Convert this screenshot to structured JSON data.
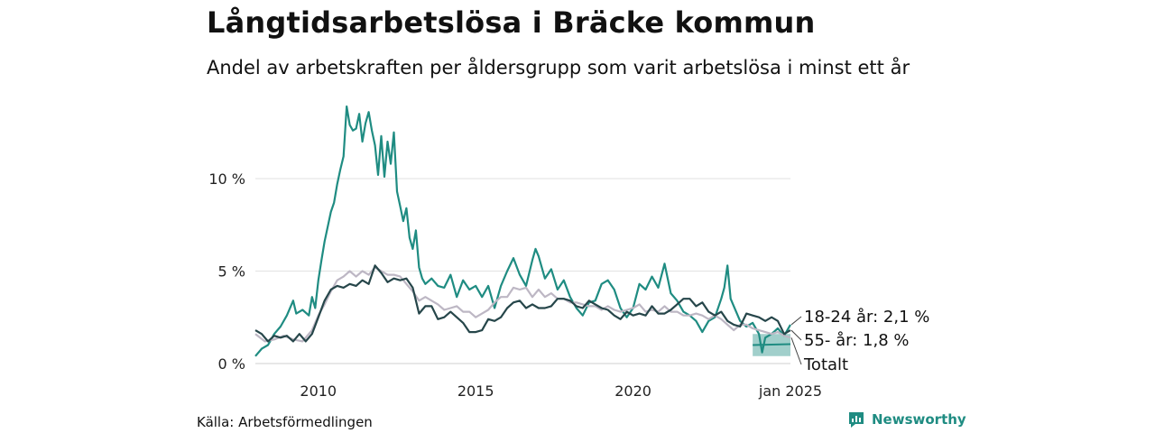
{
  "title": "Långtidsarbetslösa i Bräcke kommun",
  "subtitle": "Andel av arbetskraften per åldersgrupp som varit arbetslösa i minst ett år",
  "source": "Källa: Arbetsförmedlingen",
  "brand": {
    "name": "Newsworthy",
    "icon": "newsworthy-logo-icon",
    "color": "#1f8c82"
  },
  "chart_data": {
    "type": "line",
    "xlim": [
      2008.0,
      2025.0
    ],
    "ylim": [
      0,
      13.9
    ],
    "grid": true,
    "y_ticks": [
      {
        "value": 0,
        "label": "0 %"
      },
      {
        "value": 5,
        "label": "5 %"
      },
      {
        "value": 10,
        "label": "10 %"
      }
    ],
    "x_ticks": [
      {
        "value": 2010,
        "label": "2010"
      },
      {
        "value": 2015,
        "label": "2015"
      },
      {
        "value": 2020,
        "label": "2020"
      },
      {
        "value": 2025,
        "label": "jan 2025"
      }
    ],
    "end_labels": [
      "18-24 år: 2,1 %",
      "55- år: 1,8 %",
      "Totalt"
    ],
    "band": {
      "color": "#1f8c82",
      "x": [
        2023.8,
        2025.0
      ],
      "lower": [
        0.4,
        0.4
      ],
      "upper": [
        1.6,
        1.6
      ],
      "mid": [
        1.0,
        1.05
      ]
    },
    "series": [
      {
        "color": "#1f8c82",
        "label_ref": 0,
        "points": [
          [
            2008.0,
            0.4
          ],
          [
            2008.2,
            0.8
          ],
          [
            2008.4,
            1.0
          ],
          [
            2008.6,
            1.6
          ],
          [
            2008.8,
            2.0
          ],
          [
            2009.0,
            2.6
          ],
          [
            2009.2,
            3.4
          ],
          [
            2009.3,
            2.7
          ],
          [
            2009.5,
            2.9
          ],
          [
            2009.7,
            2.6
          ],
          [
            2009.8,
            3.6
          ],
          [
            2009.9,
            3.0
          ],
          [
            2010.0,
            4.5
          ],
          [
            2010.1,
            5.6
          ],
          [
            2010.2,
            6.6
          ],
          [
            2010.3,
            7.4
          ],
          [
            2010.4,
            8.2
          ],
          [
            2010.5,
            8.7
          ],
          [
            2010.6,
            9.7
          ],
          [
            2010.7,
            10.5
          ],
          [
            2010.8,
            11.2
          ],
          [
            2010.9,
            13.9
          ],
          [
            2011.0,
            12.9
          ],
          [
            2011.1,
            12.6
          ],
          [
            2011.2,
            12.7
          ],
          [
            2011.3,
            13.5
          ],
          [
            2011.4,
            12.0
          ],
          [
            2011.5,
            13.0
          ],
          [
            2011.6,
            13.6
          ],
          [
            2011.7,
            12.6
          ],
          [
            2011.8,
            11.8
          ],
          [
            2011.9,
            10.2
          ],
          [
            2012.0,
            12.3
          ],
          [
            2012.1,
            10.1
          ],
          [
            2012.2,
            12.0
          ],
          [
            2012.3,
            10.8
          ],
          [
            2012.4,
            12.5
          ],
          [
            2012.5,
            9.3
          ],
          [
            2012.6,
            8.5
          ],
          [
            2012.7,
            7.7
          ],
          [
            2012.8,
            8.4
          ],
          [
            2012.9,
            6.8
          ],
          [
            2013.0,
            6.2
          ],
          [
            2013.1,
            7.2
          ],
          [
            2013.2,
            5.2
          ],
          [
            2013.3,
            4.6
          ],
          [
            2013.4,
            4.3
          ],
          [
            2013.6,
            4.6
          ],
          [
            2013.8,
            4.2
          ],
          [
            2014.0,
            4.1
          ],
          [
            2014.2,
            4.8
          ],
          [
            2014.4,
            3.6
          ],
          [
            2014.6,
            4.5
          ],
          [
            2014.8,
            4.0
          ],
          [
            2015.0,
            4.2
          ],
          [
            2015.2,
            3.6
          ],
          [
            2015.4,
            4.2
          ],
          [
            2015.6,
            3.0
          ],
          [
            2015.8,
            4.2
          ],
          [
            2016.0,
            5.0
          ],
          [
            2016.2,
            5.7
          ],
          [
            2016.4,
            4.8
          ],
          [
            2016.6,
            4.2
          ],
          [
            2016.8,
            5.6
          ],
          [
            2016.9,
            6.2
          ],
          [
            2017.0,
            5.8
          ],
          [
            2017.2,
            4.6
          ],
          [
            2017.4,
            5.1
          ],
          [
            2017.6,
            4.0
          ],
          [
            2017.8,
            4.5
          ],
          [
            2018.0,
            3.6
          ],
          [
            2018.2,
            3.0
          ],
          [
            2018.4,
            2.6
          ],
          [
            2018.6,
            3.3
          ],
          [
            2018.8,
            3.4
          ],
          [
            2019.0,
            4.3
          ],
          [
            2019.2,
            4.5
          ],
          [
            2019.4,
            4.0
          ],
          [
            2019.6,
            3.0
          ],
          [
            2019.8,
            2.5
          ],
          [
            2020.0,
            3.0
          ],
          [
            2020.2,
            4.3
          ],
          [
            2020.4,
            4.0
          ],
          [
            2020.6,
            4.7
          ],
          [
            2020.8,
            4.1
          ],
          [
            2021.0,
            5.4
          ],
          [
            2021.2,
            3.8
          ],
          [
            2021.4,
            3.4
          ],
          [
            2021.6,
            2.8
          ],
          [
            2021.8,
            2.6
          ],
          [
            2022.0,
            2.3
          ],
          [
            2022.2,
            1.7
          ],
          [
            2022.4,
            2.3
          ],
          [
            2022.6,
            2.5
          ],
          [
            2022.8,
            3.5
          ],
          [
            2022.9,
            4.1
          ],
          [
            2023.0,
            5.3
          ],
          [
            2023.1,
            3.5
          ],
          [
            2023.2,
            3.1
          ],
          [
            2023.4,
            2.3
          ],
          [
            2023.6,
            2.0
          ],
          [
            2023.8,
            2.2
          ],
          [
            2024.0,
            1.6
          ],
          [
            2024.1,
            0.6
          ],
          [
            2024.2,
            1.4
          ],
          [
            2024.4,
            1.6
          ],
          [
            2024.6,
            1.9
          ],
          [
            2024.8,
            1.5
          ],
          [
            2025.0,
            2.1
          ]
        ]
      },
      {
        "color": "#bdb7c4",
        "label_ref": 2,
        "points": [
          [
            2008.0,
            1.6
          ],
          [
            2008.3,
            1.2
          ],
          [
            2008.6,
            1.3
          ],
          [
            2008.9,
            1.5
          ],
          [
            2009.2,
            1.3
          ],
          [
            2009.5,
            1.2
          ],
          [
            2009.8,
            1.8
          ],
          [
            2010.0,
            2.6
          ],
          [
            2010.2,
            3.2
          ],
          [
            2010.4,
            3.9
          ],
          [
            2010.6,
            4.5
          ],
          [
            2010.8,
            4.7
          ],
          [
            2011.0,
            5.0
          ],
          [
            2011.2,
            4.7
          ],
          [
            2011.4,
            5.0
          ],
          [
            2011.6,
            4.8
          ],
          [
            2011.8,
            5.2
          ],
          [
            2012.0,
            5.0
          ],
          [
            2012.2,
            4.8
          ],
          [
            2012.4,
            4.8
          ],
          [
            2012.6,
            4.7
          ],
          [
            2012.8,
            4.3
          ],
          [
            2013.0,
            3.9
          ],
          [
            2013.2,
            3.4
          ],
          [
            2013.4,
            3.6
          ],
          [
            2013.6,
            3.4
          ],
          [
            2013.8,
            3.2
          ],
          [
            2014.0,
            2.9
          ],
          [
            2014.2,
            3.0
          ],
          [
            2014.4,
            3.1
          ],
          [
            2014.6,
            2.8
          ],
          [
            2014.8,
            2.8
          ],
          [
            2015.0,
            2.5
          ],
          [
            2015.2,
            2.7
          ],
          [
            2015.4,
            2.9
          ],
          [
            2015.6,
            3.3
          ],
          [
            2015.8,
            3.6
          ],
          [
            2016.0,
            3.6
          ],
          [
            2016.2,
            4.1
          ],
          [
            2016.4,
            4.0
          ],
          [
            2016.6,
            4.1
          ],
          [
            2016.8,
            3.6
          ],
          [
            2017.0,
            4.0
          ],
          [
            2017.2,
            3.6
          ],
          [
            2017.4,
            3.8
          ],
          [
            2017.6,
            3.5
          ],
          [
            2017.8,
            3.5
          ],
          [
            2018.0,
            3.3
          ],
          [
            2018.2,
            3.3
          ],
          [
            2018.4,
            3.2
          ],
          [
            2018.6,
            3.1
          ],
          [
            2018.8,
            3.1
          ],
          [
            2019.0,
            2.9
          ],
          [
            2019.2,
            3.1
          ],
          [
            2019.4,
            2.9
          ],
          [
            2019.6,
            2.8
          ],
          [
            2019.8,
            2.9
          ],
          [
            2020.0,
            3.0
          ],
          [
            2020.2,
            3.2
          ],
          [
            2020.4,
            2.8
          ],
          [
            2020.6,
            2.9
          ],
          [
            2020.8,
            2.8
          ],
          [
            2021.0,
            3.1
          ],
          [
            2021.2,
            2.8
          ],
          [
            2021.4,
            2.8
          ],
          [
            2021.6,
            2.6
          ],
          [
            2021.8,
            2.6
          ],
          [
            2022.0,
            2.7
          ],
          [
            2022.2,
            2.6
          ],
          [
            2022.4,
            2.4
          ],
          [
            2022.6,
            2.6
          ],
          [
            2022.8,
            2.4
          ],
          [
            2023.0,
            2.1
          ],
          [
            2023.2,
            1.8
          ],
          [
            2023.4,
            2.1
          ],
          [
            2023.6,
            2.1
          ],
          [
            2023.8,
            1.9
          ],
          [
            2024.0,
            1.8
          ],
          [
            2024.2,
            1.7
          ],
          [
            2024.4,
            1.6
          ],
          [
            2024.6,
            1.7
          ],
          [
            2024.8,
            1.5
          ],
          [
            2025.0,
            1.4
          ]
        ]
      },
      {
        "color": "#26464a",
        "label_ref": 1,
        "points": [
          [
            2008.0,
            1.8
          ],
          [
            2008.2,
            1.6
          ],
          [
            2008.4,
            1.2
          ],
          [
            2008.6,
            1.5
          ],
          [
            2008.8,
            1.4
          ],
          [
            2009.0,
            1.5
          ],
          [
            2009.2,
            1.2
          ],
          [
            2009.4,
            1.6
          ],
          [
            2009.6,
            1.2
          ],
          [
            2009.8,
            1.6
          ],
          [
            2010.0,
            2.5
          ],
          [
            2010.2,
            3.4
          ],
          [
            2010.4,
            4.0
          ],
          [
            2010.6,
            4.2
          ],
          [
            2010.8,
            4.1
          ],
          [
            2011.0,
            4.3
          ],
          [
            2011.2,
            4.2
          ],
          [
            2011.4,
            4.5
          ],
          [
            2011.6,
            4.3
          ],
          [
            2011.8,
            5.3
          ],
          [
            2012.0,
            4.9
          ],
          [
            2012.2,
            4.4
          ],
          [
            2012.4,
            4.6
          ],
          [
            2012.6,
            4.5
          ],
          [
            2012.8,
            4.6
          ],
          [
            2013.0,
            4.1
          ],
          [
            2013.2,
            2.7
          ],
          [
            2013.4,
            3.1
          ],
          [
            2013.6,
            3.1
          ],
          [
            2013.8,
            2.4
          ],
          [
            2014.0,
            2.5
          ],
          [
            2014.2,
            2.8
          ],
          [
            2014.4,
            2.5
          ],
          [
            2014.6,
            2.2
          ],
          [
            2014.8,
            1.7
          ],
          [
            2015.0,
            1.7
          ],
          [
            2015.2,
            1.8
          ],
          [
            2015.4,
            2.4
          ],
          [
            2015.6,
            2.3
          ],
          [
            2015.8,
            2.5
          ],
          [
            2016.0,
            3.0
          ],
          [
            2016.2,
            3.3
          ],
          [
            2016.4,
            3.4
          ],
          [
            2016.6,
            3.0
          ],
          [
            2016.8,
            3.2
          ],
          [
            2017.0,
            3.0
          ],
          [
            2017.2,
            3.0
          ],
          [
            2017.4,
            3.1
          ],
          [
            2017.6,
            3.5
          ],
          [
            2017.8,
            3.5
          ],
          [
            2018.0,
            3.4
          ],
          [
            2018.2,
            3.1
          ],
          [
            2018.4,
            3.0
          ],
          [
            2018.6,
            3.4
          ],
          [
            2018.8,
            3.2
          ],
          [
            2019.0,
            3.0
          ],
          [
            2019.2,
            2.9
          ],
          [
            2019.4,
            2.6
          ],
          [
            2019.6,
            2.4
          ],
          [
            2019.8,
            2.8
          ],
          [
            2020.0,
            2.6
          ],
          [
            2020.2,
            2.7
          ],
          [
            2020.4,
            2.6
          ],
          [
            2020.6,
            3.1
          ],
          [
            2020.8,
            2.7
          ],
          [
            2021.0,
            2.7
          ],
          [
            2021.2,
            2.9
          ],
          [
            2021.4,
            3.2
          ],
          [
            2021.6,
            3.5
          ],
          [
            2021.8,
            3.5
          ],
          [
            2022.0,
            3.1
          ],
          [
            2022.2,
            3.3
          ],
          [
            2022.4,
            2.8
          ],
          [
            2022.6,
            2.6
          ],
          [
            2022.8,
            2.8
          ],
          [
            2023.0,
            2.3
          ],
          [
            2023.2,
            2.1
          ],
          [
            2023.4,
            2.0
          ],
          [
            2023.6,
            2.7
          ],
          [
            2023.8,
            2.6
          ],
          [
            2024.0,
            2.5
          ],
          [
            2024.2,
            2.3
          ],
          [
            2024.4,
            2.5
          ],
          [
            2024.6,
            2.3
          ],
          [
            2024.8,
            1.6
          ],
          [
            2025.0,
            1.8
          ]
        ]
      }
    ]
  }
}
